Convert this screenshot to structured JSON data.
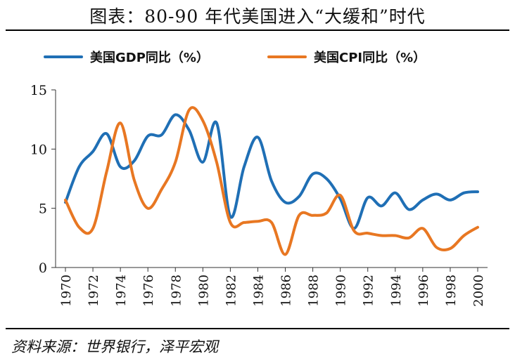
{
  "title": "图表：80-90 年代美国进入“大缓和”时代",
  "source": "资料来源：世界银行，泽平宏观",
  "chart_data": {
    "type": "line",
    "title": "图表：80-90 年代美国进入“大缓和”时代",
    "xlabel": "",
    "ylabel": "",
    "ylim": [
      0,
      15
    ],
    "yticks": [
      0,
      5,
      10,
      15
    ],
    "xlim": [
      1970,
      2000
    ],
    "xticks": [
      1970,
      1972,
      1974,
      1976,
      1978,
      1980,
      1982,
      1984,
      1986,
      1988,
      1990,
      1992,
      1994,
      1996,
      1998,
      2000
    ],
    "grid": false,
    "legend_position": "top",
    "x": [
      1970,
      1971,
      1972,
      1973,
      1974,
      1975,
      1976,
      1977,
      1978,
      1979,
      1980,
      1981,
      1982,
      1983,
      1984,
      1985,
      1986,
      1987,
      1988,
      1989,
      1990,
      1991,
      1992,
      1993,
      1994,
      1995,
      1996,
      1997,
      1998,
      1999,
      2000
    ],
    "series": [
      {
        "name": "美国GDP同比（%）",
        "color": "#1f6fb5",
        "values": [
          5.5,
          8.5,
          9.8,
          11.3,
          8.5,
          9.0,
          11.1,
          11.2,
          12.9,
          11.6,
          8.9,
          12.2,
          4.3,
          8.5,
          11.0,
          7.3,
          5.5,
          6.0,
          7.9,
          7.5,
          5.8,
          3.3,
          5.9,
          5.2,
          6.3,
          4.9,
          5.7,
          6.2,
          5.7,
          6.3,
          6.4
        ]
      },
      {
        "name": "美国CPI同比（%）",
        "color": "#e87722",
        "values": [
          5.7,
          3.4,
          3.3,
          8.1,
          12.2,
          7.4,
          5.0,
          6.6,
          8.9,
          13.3,
          12.4,
          8.9,
          3.8,
          3.8,
          3.9,
          3.8,
          1.1,
          4.4,
          4.4,
          4.6,
          6.1,
          3.1,
          2.9,
          2.7,
          2.7,
          2.5,
          3.3,
          1.7,
          1.6,
          2.7,
          3.4
        ]
      }
    ]
  }
}
